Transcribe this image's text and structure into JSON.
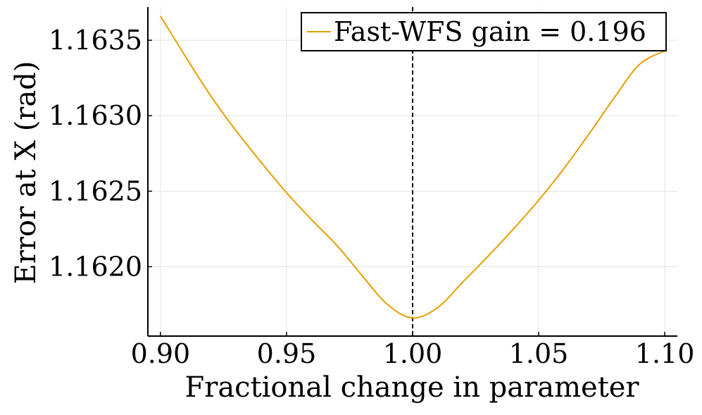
{
  "chart_data": {
    "type": "line",
    "title": "",
    "xlabel": "Fractional change in parameter",
    "ylabel": "Error at X (rad)",
    "xlim": [
      0.895,
      1.105
    ],
    "ylim": [
      1.16154,
      1.16372
    ],
    "xticks": [
      0.9,
      0.95,
      1.0,
      1.05,
      1.1
    ],
    "xtick_labels": [
      "0.90",
      "0.95",
      "1.00",
      "1.05",
      "1.10"
    ],
    "yticks": [
      1.162,
      1.1625,
      1.163,
      1.1635
    ],
    "ytick_labels": [
      "1.1620",
      "1.1625",
      "1.1630",
      "1.1635"
    ],
    "grid": true,
    "legend_position": "top-right",
    "series": [
      {
        "name": "Fast-WFS gain = 0.196",
        "color": "#E69F00",
        "x": [
          0.9,
          0.91,
          0.92,
          0.93,
          0.94,
          0.95,
          0.96,
          0.97,
          0.98,
          0.99,
          1.0,
          1.01,
          1.02,
          1.03,
          1.04,
          1.05,
          1.06,
          1.07,
          1.08,
          1.09,
          1.1
        ],
        "y": [
          1.16366,
          1.16339,
          1.16313,
          1.1629,
          1.16269,
          1.16249,
          1.16231,
          1.16214,
          1.16194,
          1.16175,
          1.16166,
          1.16173,
          1.1619,
          1.16207,
          1.16225,
          1.16244,
          1.16265,
          1.16288,
          1.16312,
          1.16334,
          1.16343
        ]
      }
    ],
    "reference_line": {
      "orientation": "vertical",
      "x": 1.0,
      "style": "dashed",
      "color": "#000000"
    }
  }
}
